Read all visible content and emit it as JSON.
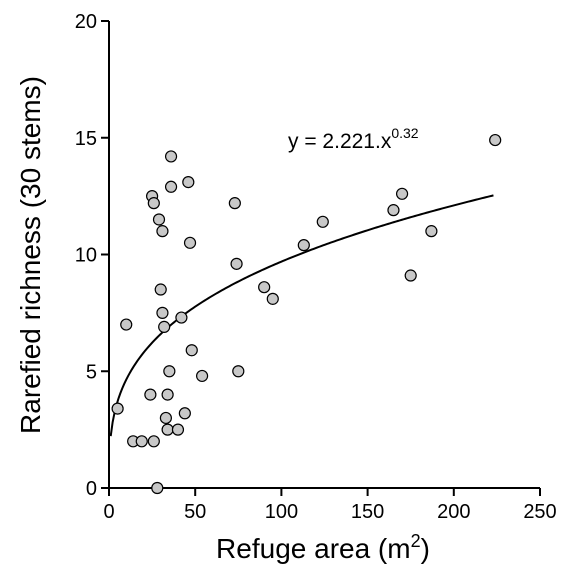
{
  "chart_data": {
    "type": "scatter",
    "title": "",
    "xlabel": "Refuge area (m",
    "xlabel_sup": "2",
    "xlabel_close": ")",
    "ylabel": "Rarefied richness (30 stems)",
    "xlim": [
      0,
      250
    ],
    "ylim": [
      0,
      20
    ],
    "x_ticks": [
      0,
      50,
      100,
      150,
      200,
      250
    ],
    "y_ticks": [
      0,
      5,
      10,
      15,
      20
    ],
    "grid": false,
    "points": [
      {
        "x": 5,
        "y": 3.4
      },
      {
        "x": 10,
        "y": 7.0
      },
      {
        "x": 14,
        "y": 2.0
      },
      {
        "x": 19,
        "y": 2.0
      },
      {
        "x": 24,
        "y": 4.0
      },
      {
        "x": 25,
        "y": 12.5
      },
      {
        "x": 26,
        "y": 12.2
      },
      {
        "x": 26,
        "y": 2.0
      },
      {
        "x": 28,
        "y": 0.0
      },
      {
        "x": 29,
        "y": 11.5
      },
      {
        "x": 30,
        "y": 8.5
      },
      {
        "x": 31,
        "y": 7.5
      },
      {
        "x": 31,
        "y": 11.0
      },
      {
        "x": 32,
        "y": 6.9
      },
      {
        "x": 33,
        "y": 3.0
      },
      {
        "x": 34,
        "y": 4.0
      },
      {
        "x": 34,
        "y": 2.5
      },
      {
        "x": 35,
        "y": 5.0
      },
      {
        "x": 36,
        "y": 14.2
      },
      {
        "x": 36,
        "y": 12.9
      },
      {
        "x": 40,
        "y": 2.5
      },
      {
        "x": 42,
        "y": 7.3
      },
      {
        "x": 44,
        "y": 3.2
      },
      {
        "x": 46,
        "y": 13.1
      },
      {
        "x": 47,
        "y": 10.5
      },
      {
        "x": 48,
        "y": 5.9
      },
      {
        "x": 54,
        "y": 4.8
      },
      {
        "x": 73,
        "y": 12.2
      },
      {
        "x": 74,
        "y": 9.6
      },
      {
        "x": 75,
        "y": 5.0
      },
      {
        "x": 90,
        "y": 8.6
      },
      {
        "x": 95,
        "y": 8.1
      },
      {
        "x": 113,
        "y": 10.4
      },
      {
        "x": 124,
        "y": 11.4
      },
      {
        "x": 165,
        "y": 11.9
      },
      {
        "x": 170,
        "y": 12.6
      },
      {
        "x": 175,
        "y": 9.1
      },
      {
        "x": 187,
        "y": 11.0
      },
      {
        "x": 224,
        "y": 14.9
      }
    ],
    "fit": {
      "a": 2.221,
      "b": 0.32,
      "x_range": [
        1,
        223
      ],
      "equation_prefix": "y =  2.221.x",
      "equation_exponent": "0.32"
    },
    "marker_fill": "#c8c8c8",
    "marker_stroke": "#000000"
  }
}
